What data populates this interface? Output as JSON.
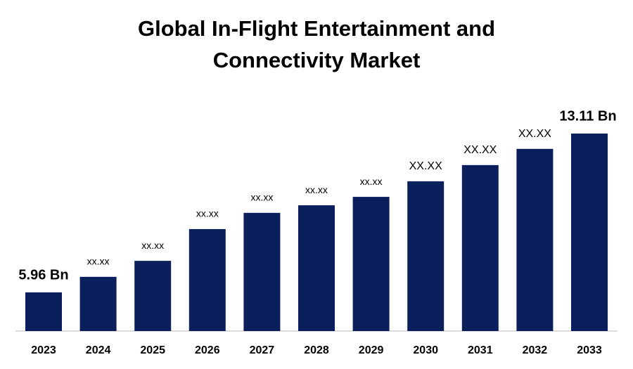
{
  "chart_data": {
    "type": "bar",
    "title": "Global In-Flight Entertainment and Connectivity Market",
    "categories": [
      "2023",
      "2024",
      "2025",
      "2026",
      "2027",
      "2028",
      "2029",
      "2030",
      "2031",
      "2032",
      "2033"
    ],
    "values": [
      5.96,
      6.66,
      7.38,
      8.81,
      9.54,
      9.88,
      10.26,
      10.96,
      11.69,
      12.42,
      13.11
    ],
    "value_labels": [
      "5.96 Bn",
      "xx.xx",
      "xx.xx",
      "xx.xx",
      "xx.xx",
      "xx.xx",
      "xx.xx",
      "XX.XX",
      "XX.XX",
      "XX.XX",
      "13.11 Bn"
    ],
    "color": "#0b1f5c"
  }
}
